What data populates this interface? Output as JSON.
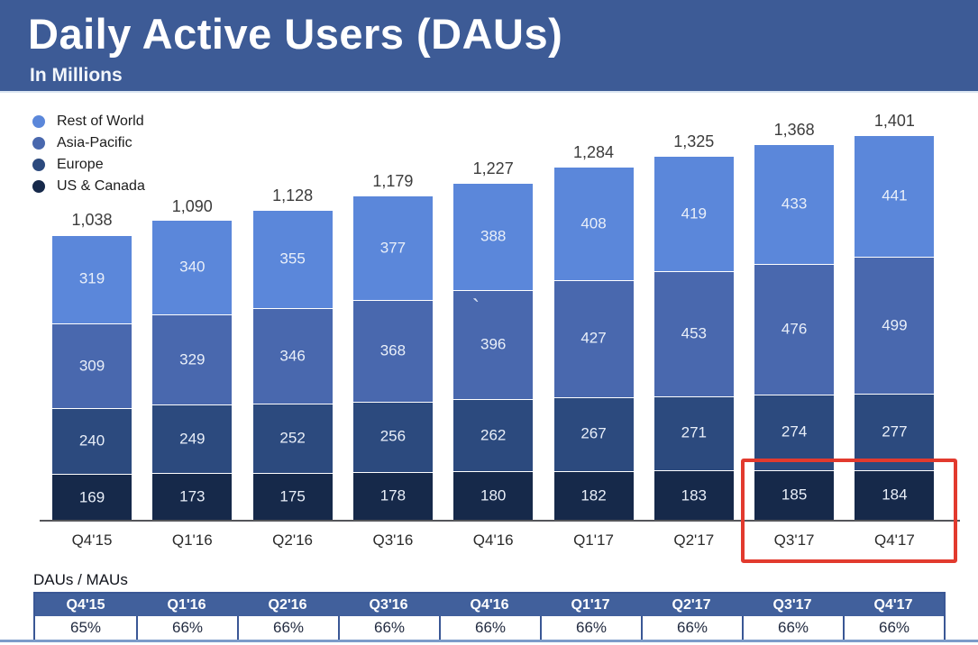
{
  "header": {
    "title": "Daily Active Users (DAUs)",
    "subtitle": "In Millions"
  },
  "legend": [
    {
      "label": "Rest of World",
      "color": "#5b87da"
    },
    {
      "label": "Asia-Pacific",
      "color": "#4968ae"
    },
    {
      "label": "Europe",
      "color": "#2c4a7e"
    },
    {
      "label": "US & Canada",
      "color": "#16294a"
    }
  ],
  "chart_data": {
    "type": "bar",
    "stacked": true,
    "title": "Daily Active Users (DAUs)",
    "subtitle": "In Millions",
    "unit": "millions",
    "legend_position": "top-left",
    "grid": false,
    "categories": [
      "Q4'15",
      "Q1'16",
      "Q2'16",
      "Q3'16",
      "Q4'16",
      "Q1'17",
      "Q2'17",
      "Q3'17",
      "Q4'17"
    ],
    "series": [
      {
        "name": "US & Canada",
        "color": "#16294a",
        "values": [
          169,
          173,
          175,
          178,
          180,
          182,
          183,
          185,
          184
        ]
      },
      {
        "name": "Europe",
        "color": "#2c4a7e",
        "values": [
          240,
          249,
          252,
          256,
          262,
          267,
          271,
          274,
          277
        ]
      },
      {
        "name": "Asia-Pacific",
        "color": "#4968ae",
        "values": [
          309,
          329,
          346,
          368,
          396,
          427,
          453,
          476,
          499
        ]
      },
      {
        "name": "Rest of World",
        "color": "#5b87da",
        "values": [
          319,
          340,
          355,
          377,
          388,
          408,
          419,
          433,
          441
        ]
      }
    ],
    "totals": [
      1038,
      1090,
      1128,
      1179,
      1227,
      1284,
      1325,
      1368,
      1401
    ],
    "total_labels": [
      "1,038",
      "1,090",
      "1,128",
      "1,179",
      "1,227",
      "1,284",
      "1,325",
      "1,368",
      "1,401"
    ],
    "highlight": {
      "categories": [
        "Q3'17",
        "Q4'17"
      ],
      "series": "US & Canada",
      "color": "#e23a2e"
    }
  },
  "table": {
    "label": "DAUs / MAUs",
    "columns": [
      "Q4'15",
      "Q1'16",
      "Q2'16",
      "Q3'16",
      "Q4'16",
      "Q1'17",
      "Q2'17",
      "Q3'17",
      "Q4'17"
    ],
    "values": [
      "65%",
      "66%",
      "66%",
      "66%",
      "66%",
      "66%",
      "66%",
      "66%",
      "66%"
    ]
  },
  "artifact": {
    "stray_mark": "`"
  }
}
